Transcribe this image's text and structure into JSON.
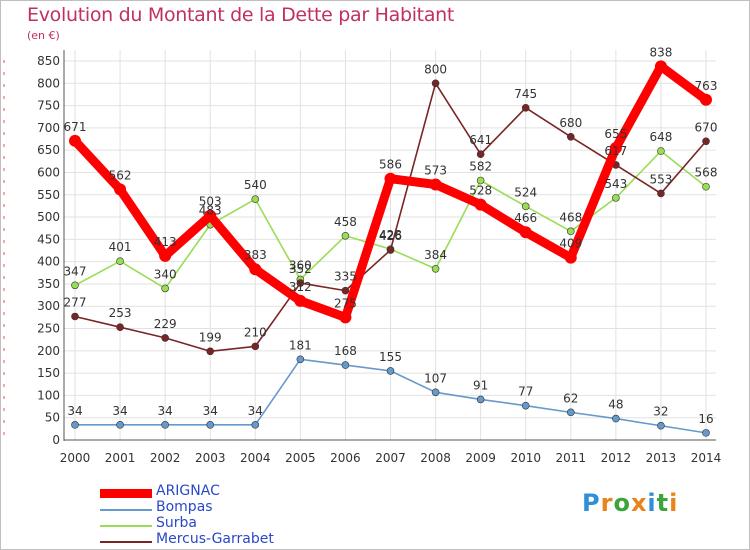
{
  "chart_data": {
    "type": "line",
    "title": "Evolution du Montant de la Dette par Habitant",
    "subtitle": "(en €)",
    "xlabel": "",
    "ylabel": "",
    "ylim": [
      0,
      850
    ],
    "yticks": [
      0,
      50,
      100,
      150,
      200,
      250,
      300,
      350,
      400,
      450,
      500,
      550,
      600,
      650,
      700,
      750,
      800,
      850
    ],
    "categories": [
      "2000",
      "2001",
      "2002",
      "2003",
      "2004",
      "2005",
      "2006",
      "2007",
      "2008",
      "2009",
      "2010",
      "2011",
      "2012",
      "2013",
      "2014"
    ],
    "series": [
      {
        "name": "ARIGNAC",
        "color": "#ff0000",
        "values": [
          671,
          562,
          413,
          503,
          383,
          312,
          275,
          586,
          573,
          528,
          466,
          409,
          655,
          838,
          763
        ]
      },
      {
        "name": "Bompas",
        "color": "#6699cc",
        "values": [
          34,
          34,
          34,
          34,
          34,
          181,
          168,
          155,
          107,
          91,
          77,
          62,
          48,
          32,
          16
        ]
      },
      {
        "name": "Surba",
        "color": "#99dd55",
        "values": [
          347,
          401,
          340,
          483,
          540,
          360,
          458,
          428,
          384,
          582,
          524,
          468,
          543,
          648,
          568
        ]
      },
      {
        "name": "Mercus-Garrabet",
        "color": "#7a2525",
        "values": [
          277,
          253,
          229,
          199,
          210,
          352,
          335,
          426,
          800,
          641,
          745,
          680,
          617,
          553,
          670
        ]
      }
    ],
    "legend_position": "bottom-left"
  },
  "logo": {
    "letters": [
      "P",
      "r",
      "o",
      "x",
      "i",
      "t",
      "i"
    ],
    "colors": [
      "#2f8fd8",
      "#e8841a",
      "#3aa53a",
      "#e8841a",
      "#2f8fd8",
      "#3aa53a",
      "#e8841a"
    ]
  }
}
